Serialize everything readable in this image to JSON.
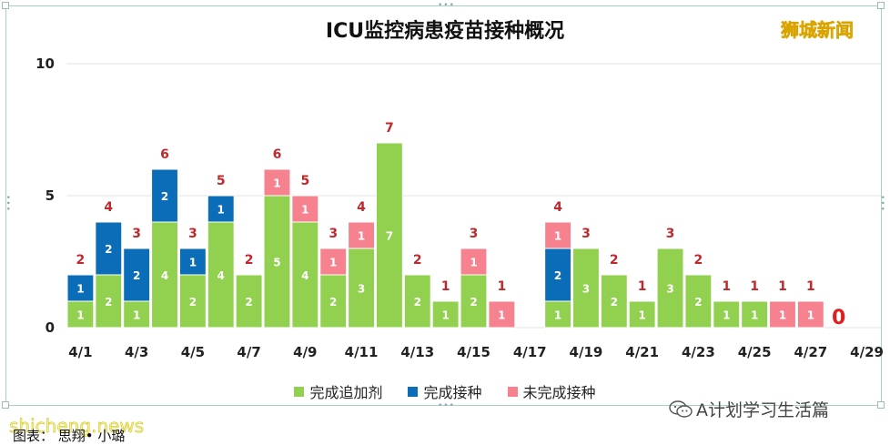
{
  "chart_data": {
    "type": "bar",
    "stacked": true,
    "title": "ICU监控病患疫苗接种概况",
    "categories": [
      "4/1",
      "4/2",
      "4/3",
      "4/4",
      "4/5",
      "4/6",
      "4/7",
      "4/8",
      "4/9",
      "4/10",
      "4/11",
      "4/12",
      "4/13",
      "4/14",
      "4/15",
      "4/16",
      "4/17",
      "4/18",
      "4/19",
      "4/20",
      "4/21",
      "4/22",
      "4/23",
      "4/24",
      "4/25",
      "4/26",
      "4/27",
      "4/28",
      "4/29"
    ],
    "tick_labels": [
      "4/1",
      "4/3",
      "4/5",
      "4/7",
      "4/9",
      "4/11",
      "4/13",
      "4/15",
      "4/17",
      "4/19",
      "4/21",
      "4/23",
      "4/25",
      "4/27",
      "4/29"
    ],
    "series": [
      {
        "name": "完成追加剂",
        "color": "#92d050",
        "values": [
          1,
          2,
          1,
          4,
          2,
          4,
          2,
          5,
          4,
          2,
          3,
          7,
          2,
          1,
          2,
          0,
          0,
          1,
          3,
          2,
          1,
          3,
          2,
          1,
          1,
          0,
          0,
          0,
          0
        ]
      },
      {
        "name": "完成接种",
        "color": "#0b6cb8",
        "values": [
          1,
          2,
          2,
          2,
          1,
          1,
          0,
          0,
          0,
          0,
          0,
          0,
          0,
          0,
          0,
          0,
          0,
          2,
          0,
          0,
          0,
          0,
          0,
          0,
          0,
          0,
          0,
          0,
          0
        ]
      },
      {
        "name": "未完成接种",
        "color": "#f5828e",
        "values": [
          0,
          0,
          0,
          0,
          0,
          0,
          0,
          1,
          1,
          1,
          1,
          0,
          0,
          0,
          1,
          1,
          0,
          1,
          0,
          0,
          0,
          0,
          0,
          0,
          0,
          1,
          1,
          0,
          0
        ]
      }
    ],
    "totals": [
      2,
      4,
      3,
      6,
      3,
      5,
      2,
      6,
      5,
      3,
      4,
      7,
      2,
      1,
      3,
      1,
      0,
      4,
      3,
      2,
      1,
      3,
      2,
      1,
      1,
      1,
      1,
      0,
      0
    ],
    "total_labels": [
      "2",
      "4",
      "3",
      "6",
      "3",
      "5",
      "2",
      "6",
      "5",
      "3",
      "4",
      "7",
      "2",
      "1",
      "3",
      "1",
      "",
      "4",
      "3",
      "2",
      "1",
      "3",
      "2",
      "1",
      "1",
      "1",
      "1",
      "0",
      ""
    ],
    "y_ticks": [
      "0",
      "5",
      "10"
    ],
    "ylim": [
      0,
      10
    ],
    "grid": true,
    "legend_position": "bottom"
  },
  "brand": "狮城新闻",
  "watermark_left": "shicheng.news",
  "watermark_right": "A计划学习生活篇",
  "caption": "图表： 思翔• 小璐"
}
